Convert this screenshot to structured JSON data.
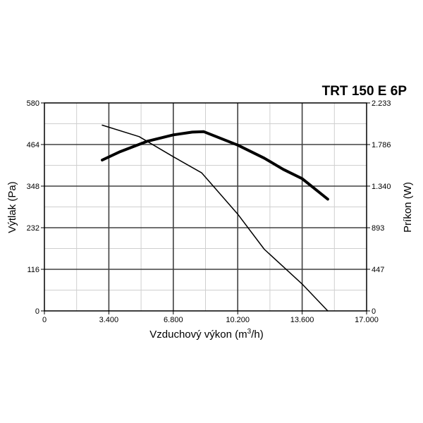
{
  "chart_data": {
    "type": "line",
    "title": "TRT 150 E 6P",
    "xlabel_prefix": "Vzduchový výkon (m",
    "xlabel_sup": "3",
    "xlabel_suffix": "/h)",
    "ylabel_left": "Výtlak (Pa)",
    "ylabel_right": "Príkon (W)",
    "xlim": [
      0,
      17000
    ],
    "ylim_left": [
      0,
      580
    ],
    "ylim_right": [
      0,
      2233
    ],
    "x_ticks": [
      0,
      3400,
      6800,
      10200,
      13600,
      17000
    ],
    "x_tick_labels": [
      "0",
      "3.400",
      "6.800",
      "10.200",
      "13.600",
      "17.000"
    ],
    "y_left_ticks": [
      0,
      116,
      232,
      348,
      464,
      580
    ],
    "y_left_tick_labels": [
      "0",
      "116",
      "232",
      "348",
      "464",
      "580"
    ],
    "y_right_ticks": [
      0,
      447,
      893,
      1340,
      1786,
      2233
    ],
    "y_right_tick_labels": [
      "0",
      "447",
      "893",
      "1.340",
      "1.786",
      "2.233"
    ],
    "grid": true,
    "series": [
      {
        "axis": "left",
        "style": "thin",
        "color": "#000000",
        "x": [
          3050,
          5000,
          6800,
          8300,
          10200,
          11600,
          13600,
          14950
        ],
        "y": [
          518,
          486,
          430,
          385,
          270,
          172,
          75,
          0
        ]
      },
      {
        "axis": "right",
        "style": "bold",
        "color": "#000000",
        "x": [
          3050,
          4000,
          5400,
          6800,
          7800,
          8400,
          10200,
          11600,
          12600,
          13600,
          14950
        ],
        "y": [
          1620,
          1710,
          1820,
          1890,
          1920,
          1925,
          1780,
          1640,
          1520,
          1420,
          1200
        ]
      }
    ]
  }
}
